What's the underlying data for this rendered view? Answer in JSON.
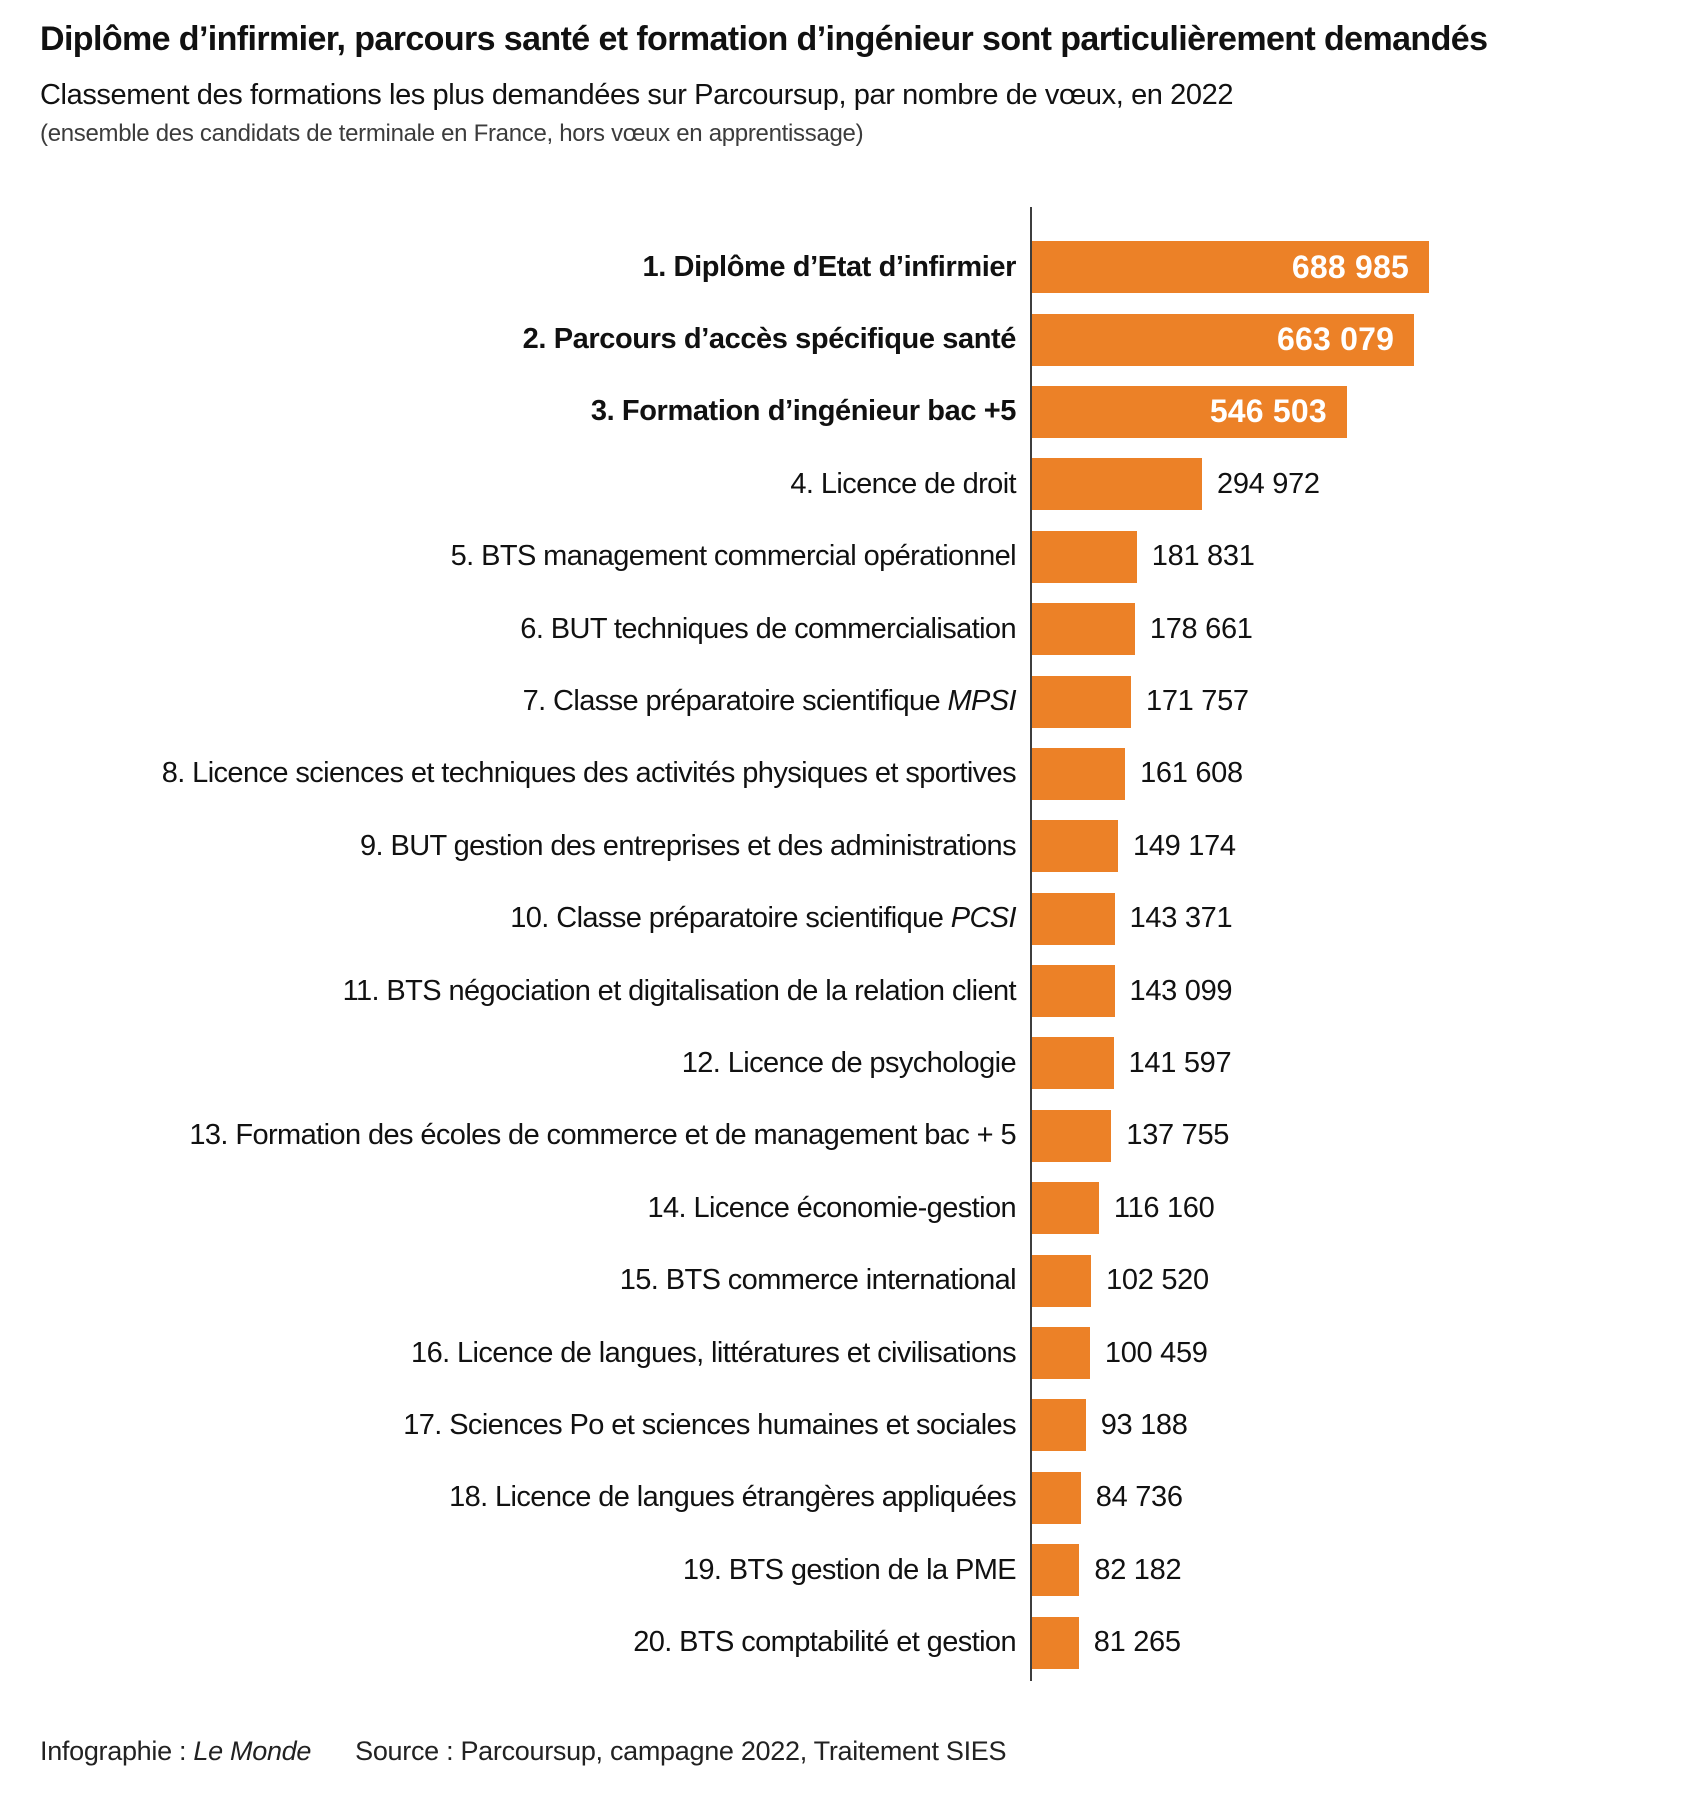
{
  "chart_data": {
    "type": "bar",
    "orientation": "horizontal",
    "title": "Diplôme d’infirmier, parcours santé et formation d’ingénieur sont particulièrement demandés",
    "subtitle": "Classement des formations les plus demandées sur Parcoursup, par nombre de vœux, en 2022",
    "note": "(ensemble des candidats de terminale en France, hors vœux en apprentissage)",
    "categories": [
      "1. Diplôme d’Etat d’infirmier",
      "2. Parcours d’accès spécifique santé",
      "3. Formation d’ingénieur bac +5",
      "4. Licence de droit",
      "5. BTS management commercial opérationnel",
      "6. BUT techniques de commercialisation",
      "7. Classe préparatoire scientifique MPSI",
      "8. Licence sciences et techniques des activités physiques et sportives",
      "9. BUT gestion des entreprises et des administrations",
      "10. Classe préparatoire scientifique PCSI",
      "11. BTS négociation et digitalisation de la relation client",
      "12. Licence de psychologie",
      "13. Formation des écoles de commerce et de management bac + 5",
      "14. Licence économie-gestion",
      "15. BTS commerce international",
      "16. Licence de langues, littératures et civilisations",
      "17. Sciences Po et sciences humaines et sociales",
      "18. Licence de langues étrangères appliquées",
      "19. BTS gestion de la PME",
      "20. BTS comptabilité et gestion"
    ],
    "values": [
      688985,
      663079,
      546503,
      294972,
      181831,
      178661,
      171757,
      161608,
      149174,
      143371,
      143099,
      141597,
      137755,
      116160,
      102520,
      100459,
      93188,
      84736,
      82182,
      81265
    ],
    "value_labels": [
      "688 985",
      "663 079",
      "546 503",
      "294 972",
      "181 831",
      "178 661",
      "171 757",
      "161 608",
      "149 174",
      "143 371",
      "143 099",
      "141 597",
      "137 755",
      "116 160",
      "102 520",
      "100 459",
      "93 188",
      "84 736",
      "82 182",
      "81 265"
    ],
    "italic_suffixes": {
      "7": "MPSI",
      "10": "PCSI"
    },
    "emphasized_ranks": [
      1,
      2,
      3
    ],
    "xlim": [
      0,
      700000
    ],
    "grid": false,
    "legend": "none",
    "xlabel": "",
    "ylabel": ""
  },
  "footer": {
    "credit_prefix": "Infographie : ",
    "credit_name": "Le Monde",
    "source": "Source : Parcoursup, campagne 2022, Traitement SIES"
  },
  "colors": {
    "bar": "#ec8127",
    "axis": "#3d3d3d",
    "text": "#111111",
    "value_inside": "#ffffff"
  }
}
